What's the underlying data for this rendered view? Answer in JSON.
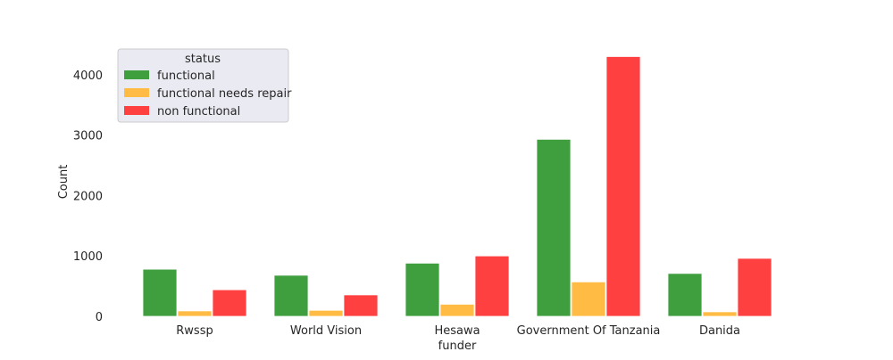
{
  "chart_data": {
    "type": "bar",
    "xlabel": "funder",
    "ylabel": "Count",
    "ylim": [
      0,
      4500
    ],
    "yticks": [
      0,
      1000,
      2000,
      3000,
      4000
    ],
    "categories": [
      "Rwssp",
      "World Vision",
      "Hesawa",
      "Government Of Tanzania",
      "Danida"
    ],
    "series": [
      {
        "name": "functional",
        "color": "#3f9f3f",
        "values": [
          780,
          680,
          880,
          2930,
          710
        ]
      },
      {
        "name": "functional needs repair",
        "color": "#ffbb44",
        "values": [
          90,
          100,
          200,
          570,
          75
        ]
      },
      {
        "name": "non functional",
        "color": "#ff4040",
        "values": [
          440,
          355,
          1000,
          4300,
          960
        ]
      }
    ],
    "legend": {
      "title": "status",
      "placement": "top-left"
    },
    "grid": false
  }
}
